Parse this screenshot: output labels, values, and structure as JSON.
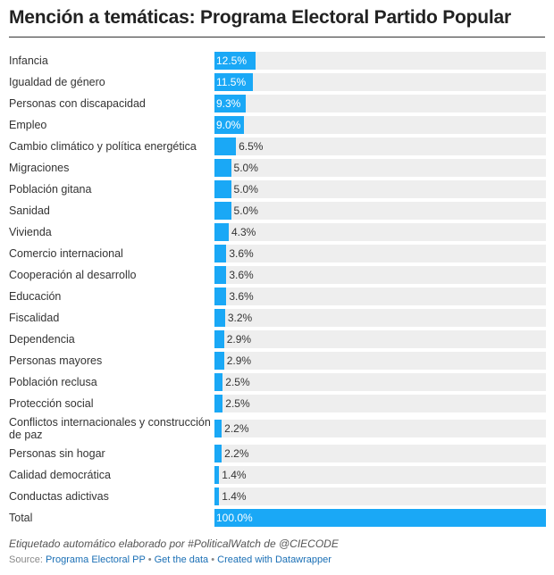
{
  "title": "Mención a temáticas: Programa Electoral Partido Popular",
  "chart_data": {
    "type": "bar",
    "orientation": "horizontal",
    "xlim": [
      0,
      100
    ],
    "value_suffix": "%",
    "categories": [
      "Infancia",
      "Igualdad de género",
      "Personas con discapacidad",
      "Empleo",
      "Cambio climático y política energética",
      "Migraciones",
      "Población gitana",
      "Sanidad",
      "Vivienda",
      "Comercio internacional",
      "Cooperación al desarrollo",
      "Educación",
      "Fiscalidad",
      "Dependencia",
      "Personas mayores",
      "Población reclusa",
      "Protección social",
      "Conflictos internacionales y construcción de paz",
      "Personas sin hogar",
      "Calidad democrática",
      "Conductas adictivas",
      "Total"
    ],
    "values": [
      12.5,
      11.5,
      9.3,
      9.0,
      6.5,
      5.0,
      5.0,
      5.0,
      4.3,
      3.6,
      3.6,
      3.6,
      3.2,
      2.9,
      2.9,
      2.5,
      2.5,
      2.2,
      2.2,
      1.4,
      1.4,
      100.0
    ],
    "bar_color": "#1aa8f6",
    "track_color": "#eeeeee",
    "grid": false
  },
  "notes": "Etiquetado automático elaborado por #PoliticalWatch de @CIECODE",
  "source": {
    "prefix": "Source: ",
    "link": "Programa Electoral PP",
    "sep1": " • ",
    "get_data": "Get the data",
    "sep2": " • ",
    "created": "Created with Datawrapper"
  }
}
